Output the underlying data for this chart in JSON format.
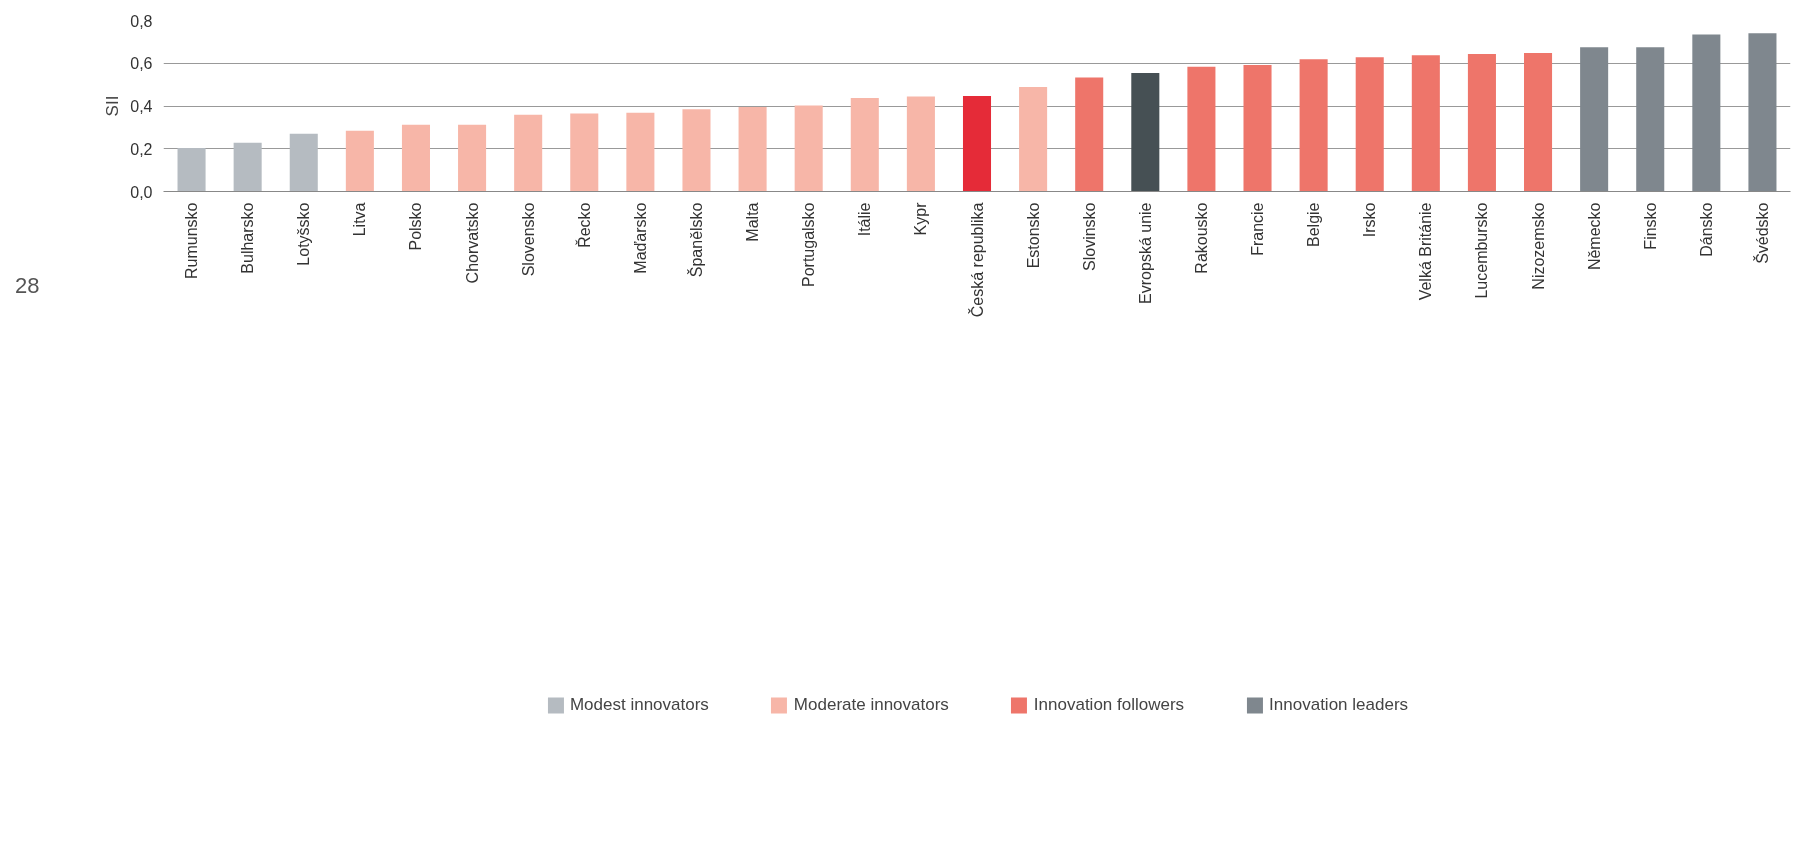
{
  "chart_data": {
    "type": "bar",
    "ylabel": "SII",
    "stacked": true,
    "categories": [
      "Rumunsko",
      "Bulharsko",
      "Lotyšsko",
      "Litva",
      "Polsko",
      "Chorvatsko",
      "Slovensko",
      "Řecko",
      "Maďarsko",
      "Španělsko",
      "Malta",
      "Portugalsko",
      "Itálie",
      "Kypr",
      "Česká republika",
      "Estonsko",
      "Slovinsko",
      "Evropská unie",
      "Rakousko",
      "Francie",
      "Belgie",
      "Irsko",
      "Velká Británie",
      "Lucembursko",
      "Nizozemsko",
      "Německo",
      "Finsko",
      "Dánsko",
      "Švédsko"
    ],
    "series": [
      {
        "name": "Modest innovators",
        "color": "#b5bbc1",
        "values": [
          0.204,
          0.228,
          0.27,
          null,
          null,
          null,
          null,
          null,
          null,
          null,
          null,
          null,
          null,
          null,
          null,
          null,
          null,
          null,
          null,
          null,
          null,
          null,
          null,
          null,
          null,
          null,
          null,
          null,
          null
        ]
      },
      {
        "name": "Moderate innovators",
        "color": "#f7b6a8",
        "values": [
          null,
          null,
          null,
          0.284,
          0.312,
          0.312,
          0.359,
          0.365,
          0.368,
          0.385,
          0.395,
          0.402,
          0.438,
          0.444,
          null,
          0.489,
          null,
          null,
          null,
          null,
          null,
          null,
          null,
          null,
          null,
          null,
          null,
          null,
          null
        ]
      },
      {
        "name": "Innovation followers",
        "color": "#ee756a",
        "values": [
          null,
          null,
          null,
          null,
          null,
          null,
          null,
          null,
          null,
          null,
          null,
          null,
          null,
          null,
          null,
          null,
          0.533,
          null,
          0.584,
          0.592,
          0.619,
          0.628,
          0.637,
          0.643,
          0.648,
          null,
          null,
          null,
          null
        ]
      },
      {
        "name": "Innovation leaders",
        "color": "#7f878e",
        "values": [
          null,
          null,
          null,
          null,
          null,
          null,
          null,
          null,
          null,
          null,
          null,
          null,
          null,
          null,
          null,
          null,
          null,
          null,
          null,
          null,
          null,
          null,
          null,
          null,
          null,
          0.675,
          0.675,
          0.735,
          0.74
        ]
      },
      {
        "color": "#e52b38",
        "values": [
          null,
          null,
          null,
          null,
          null,
          null,
          null,
          null,
          null,
          null,
          null,
          null,
          null,
          null,
          0.447,
          null,
          null,
          null,
          null,
          null,
          null,
          null,
          null,
          null,
          null,
          null,
          null,
          null,
          null
        ]
      },
      {
        "color": "#465054",
        "values": [
          null,
          null,
          null,
          null,
          null,
          null,
          null,
          null,
          null,
          null,
          null,
          null,
          null,
          null,
          null,
          null,
          null,
          0.554,
          null,
          null,
          null,
          null,
          null,
          null,
          null,
          null,
          null,
          null,
          null
        ]
      }
    ],
    "ylim": [
      0,
      0.8
    ],
    "yticks": [
      {
        "value": 0,
        "label": "0,0"
      },
      {
        "value": 0.2,
        "label": "0,2"
      },
      {
        "value": 0.4,
        "label": "0,4"
      },
      {
        "value": 0.6,
        "label": "0,6"
      },
      {
        "value": 0.8,
        "label": "0,8"
      }
    ],
    "grid": "y",
    "legend": "bottom",
    "annotations": [
      "28"
    ]
  }
}
